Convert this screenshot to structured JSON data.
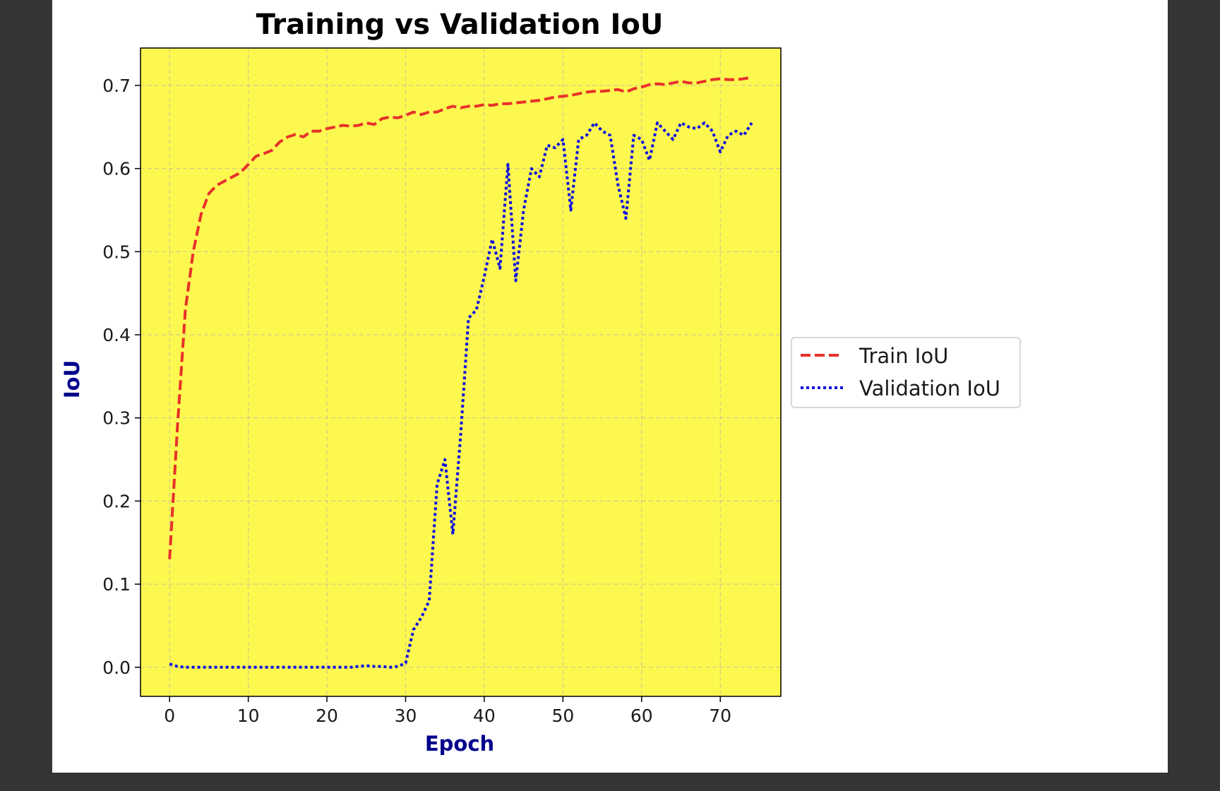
{
  "chart_data": {
    "type": "line",
    "title": "Training vs Validation IoU",
    "xlabel": "Epoch",
    "ylabel": "IoU",
    "xlim": [
      -3.7,
      77.7
    ],
    "ylim": [
      -0.035,
      0.745
    ],
    "xticks": [
      0,
      10,
      20,
      30,
      40,
      50,
      60,
      70
    ],
    "yticks": [
      0.0,
      0.1,
      0.2,
      0.3,
      0.4,
      0.5,
      0.6,
      0.7
    ],
    "grid": true,
    "legend_position": "center-right-outside",
    "background_color": "#fdf850",
    "x": [
      0,
      1,
      2,
      3,
      4,
      5,
      6,
      7,
      8,
      9,
      10,
      11,
      12,
      13,
      14,
      15,
      16,
      17,
      18,
      19,
      20,
      21,
      22,
      23,
      24,
      25,
      26,
      27,
      28,
      29,
      30,
      31,
      32,
      33,
      34,
      35,
      36,
      37,
      38,
      39,
      40,
      41,
      42,
      43,
      44,
      45,
      46,
      47,
      48,
      49,
      50,
      51,
      52,
      53,
      54,
      55,
      56,
      57,
      58,
      59,
      60,
      61,
      62,
      63,
      64,
      65,
      66,
      67,
      68,
      69,
      70,
      71,
      72,
      73,
      74
    ],
    "series": [
      {
        "name": "Train IoU",
        "color": "#e8312a",
        "style": "dashed",
        "values": [
          0.13,
          0.29,
          0.43,
          0.5,
          0.545,
          0.57,
          0.58,
          0.585,
          0.59,
          0.595,
          0.605,
          0.615,
          0.618,
          0.622,
          0.632,
          0.638,
          0.641,
          0.638,
          0.645,
          0.645,
          0.648,
          0.65,
          0.652,
          0.651,
          0.652,
          0.655,
          0.653,
          0.66,
          0.662,
          0.661,
          0.664,
          0.668,
          0.665,
          0.668,
          0.668,
          0.672,
          0.675,
          0.673,
          0.675,
          0.675,
          0.677,
          0.676,
          0.678,
          0.678,
          0.679,
          0.68,
          0.681,
          0.682,
          0.684,
          0.686,
          0.687,
          0.688,
          0.69,
          0.692,
          0.693,
          0.693,
          0.694,
          0.695,
          0.692,
          0.696,
          0.698,
          0.701,
          0.702,
          0.701,
          0.703,
          0.705,
          0.703,
          0.703,
          0.705,
          0.707,
          0.708,
          0.707,
          0.707,
          0.708,
          0.71
        ]
      },
      {
        "name": "Validation IoU",
        "color": "#1010e0",
        "style": "dotted",
        "values": [
          0.004,
          0.001,
          0.0,
          0.0,
          0.0,
          0.0,
          0.0,
          0.0,
          0.0,
          0.0,
          0.0,
          0.0,
          0.0,
          0.0,
          0.0,
          0.0,
          0.0,
          0.0,
          0.0,
          0.0,
          0.0,
          0.0,
          0.0,
          0.0,
          0.001,
          0.002,
          0.001,
          0.001,
          0.0,
          0.001,
          0.005,
          0.045,
          0.06,
          0.08,
          0.22,
          0.25,
          0.16,
          0.28,
          0.42,
          0.43,
          0.47,
          0.515,
          0.48,
          0.605,
          0.465,
          0.55,
          0.6,
          0.59,
          0.628,
          0.625,
          0.635,
          0.55,
          0.635,
          0.64,
          0.655,
          0.645,
          0.64,
          0.58,
          0.54,
          0.64,
          0.635,
          0.61,
          0.655,
          0.645,
          0.635,
          0.655,
          0.65,
          0.648,
          0.655,
          0.645,
          0.62,
          0.64,
          0.645,
          0.64,
          0.655
        ]
      }
    ]
  }
}
